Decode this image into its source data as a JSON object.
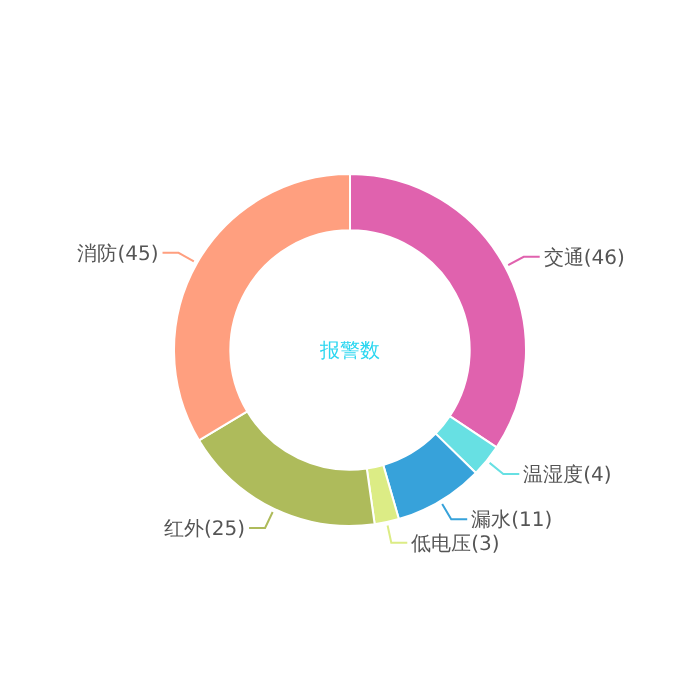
{
  "chart_data": {
    "type": "donut",
    "title": "报警数",
    "categories": [
      "交通",
      "温湿度",
      "漏水",
      "低电压",
      "红外",
      "消防"
    ],
    "values": [
      46,
      4,
      11,
      3,
      25,
      45
    ],
    "value_labels": [
      "(46)",
      "(4)",
      "(11)",
      "(3)",
      "(25)",
      "(45)"
    ],
    "colors": [
      "#e062ae",
      "#67e0e3",
      "#37a2da",
      "#dcec85",
      "#aebb5b",
      "#ff9f7f"
    ]
  }
}
